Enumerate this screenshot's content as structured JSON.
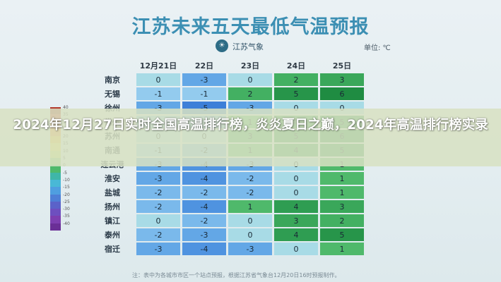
{
  "header": {
    "title": "江苏未来五天最低气温预报",
    "logo_text": "江苏气象",
    "unit": "单位: ℃"
  },
  "table": {
    "dates": [
      "12月21日",
      "22日",
      "23日",
      "24日",
      "25日"
    ],
    "rows": [
      {
        "city": "南京",
        "values": [
          "0",
          "-3",
          "0",
          "2",
          "3"
        ]
      },
      {
        "city": "无锡",
        "values": [
          "-1",
          "-1",
          "2",
          "5",
          "6"
        ]
      },
      {
        "city": "徐州",
        "values": [
          "-3",
          "-5",
          "-3",
          "0",
          "0"
        ]
      },
      {
        "city": "常州",
        "values": [
          "-1",
          "-2",
          "1",
          "4",
          "5"
        ]
      },
      {
        "city": "苏州",
        "values": [
          "0",
          "0",
          "3",
          "5",
          "6"
        ]
      },
      {
        "city": "南通",
        "values": [
          "-1",
          "-2",
          "1",
          "4",
          "5"
        ]
      },
      {
        "city": "连云港",
        "values": [
          "-3",
          "-4",
          "-3",
          "0",
          "1"
        ]
      },
      {
        "city": "淮安",
        "values": [
          "-3",
          "-4",
          "-2",
          "0",
          "1"
        ]
      },
      {
        "city": "盐城",
        "values": [
          "-2",
          "-2",
          "-2",
          "0",
          "1"
        ]
      },
      {
        "city": "扬州",
        "values": [
          "-2",
          "-4",
          "1",
          "4",
          "3"
        ]
      },
      {
        "city": "镇江",
        "values": [
          "0",
          "-2",
          "0",
          "3",
          "2"
        ]
      },
      {
        "city": "泰州",
        "values": [
          "-2",
          "-3",
          "0",
          "4",
          "5"
        ]
      },
      {
        "city": "宿迁",
        "values": [
          "-3",
          "-4",
          "-3",
          "0",
          "1"
        ]
      }
    ]
  },
  "legend": {
    "labels": [
      "40",
      "35",
      "30",
      "25",
      "20",
      "15",
      "10",
      "5",
      "0",
      "-5",
      "-10",
      "-15",
      "-20",
      "-25",
      "-30",
      "-35",
      "-40"
    ],
    "colors": [
      "#b23a2d",
      "#d9473a",
      "#f06d3a",
      "#f79a3b",
      "#f7c63e",
      "#f2e35a",
      "#c9e06a",
      "#8fcf6f",
      "#4fb96b",
      "#3fb6a8",
      "#49b8d6",
      "#4f9ee0",
      "#4e7fd6",
      "#5b62c9",
      "#6e4fbf",
      "#7d3fb0",
      "#6a2f96"
    ]
  },
  "cell_colors": {
    "-5": "#3d7fd8",
    "-4": "#4f93e0",
    "-3": "#63a7e6",
    "-2": "#7ab9eb",
    "-1": "#93cbee",
    "0": "#a8dbe6",
    "1": "#4fb96b",
    "2": "#43b062",
    "3": "#3aa75a",
    "4": "#2f9d52",
    "5": "#27954a",
    "6": "#1f8c42"
  },
  "headline": "2024年12月27日实时全国高温排行榜，炎炎夏日之巅，2024年高温排行榜实录",
  "footnote": "注：表中为各城市市区一个站点预报，根据江苏省气象台12月20日16时预报制作。"
}
